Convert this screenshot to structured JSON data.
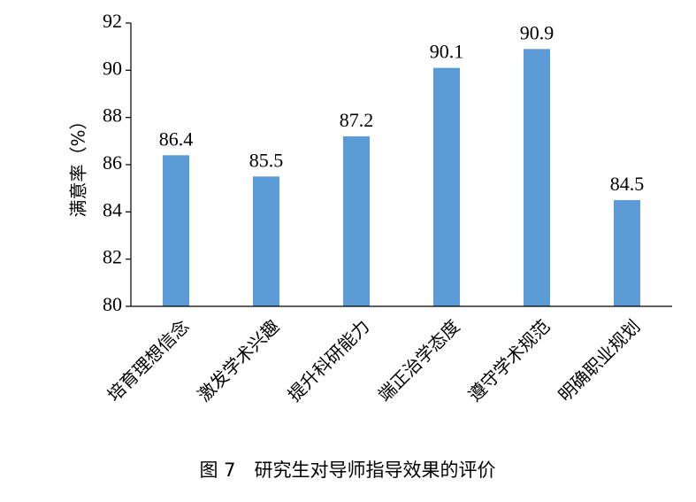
{
  "chart_data": {
    "type": "bar",
    "y_label": "满意率（%）",
    "caption": "图 7　研究生对导师指导效果的评价",
    "categories": [
      "培育理想信念",
      "激发学术兴趣",
      "提升科研能力",
      "端正治学态度",
      "遵守学术规范",
      "明确职业规划"
    ],
    "values": [
      86.4,
      85.5,
      87.2,
      90.1,
      90.9,
      84.5
    ],
    "color": "#5b9bd5",
    "ylim": [
      80,
      92
    ],
    "yticks": [
      80,
      82,
      84,
      86,
      88,
      90,
      92
    ],
    "grid": false
  }
}
